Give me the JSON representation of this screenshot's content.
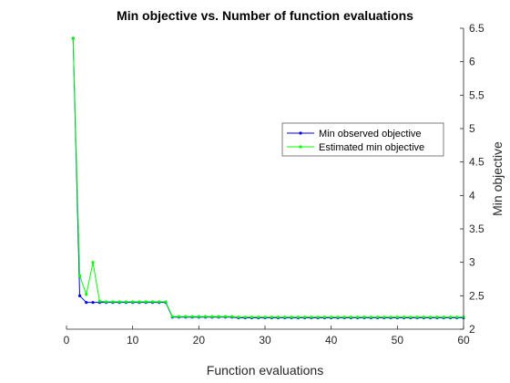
{
  "chart_data": {
    "type": "line",
    "title": "Min objective vs. Number of function evaluations",
    "xlabel": "Function evaluations",
    "ylabel": "Min objective",
    "xlim": [
      0,
      60
    ],
    "ylim": [
      2,
      6.5
    ],
    "xticks": [
      "0",
      "10",
      "20",
      "30",
      "40",
      "50",
      "60"
    ],
    "yticks": [
      "2",
      "2.5",
      "3",
      "3.5",
      "4",
      "4.5",
      "5",
      "5.5",
      "6",
      "6.5"
    ],
    "y_axis_location": "right",
    "grid": false,
    "legend_position": "right-center",
    "x": [
      1,
      2,
      3,
      4,
      5,
      6,
      7,
      8,
      9,
      10,
      11,
      12,
      13,
      14,
      15,
      16,
      17,
      18,
      19,
      20,
      21,
      22,
      23,
      24,
      25,
      26,
      27,
      28,
      29,
      30,
      31,
      32,
      33,
      34,
      35,
      36,
      37,
      38,
      39,
      40,
      41,
      42,
      43,
      44,
      45,
      46,
      47,
      48,
      49,
      50,
      51,
      52,
      53,
      54,
      55,
      56,
      57,
      58,
      59,
      60
    ],
    "series": [
      {
        "name": "Min observed objective",
        "color": "#0000ff",
        "values": [
          6.35,
          2.5,
          2.4,
          2.4,
          2.4,
          2.4,
          2.4,
          2.4,
          2.4,
          2.4,
          2.4,
          2.4,
          2.4,
          2.4,
          2.4,
          2.18,
          2.18,
          2.18,
          2.18,
          2.18,
          2.18,
          2.18,
          2.18,
          2.18,
          2.18,
          2.17,
          2.17,
          2.17,
          2.17,
          2.17,
          2.17,
          2.17,
          2.17,
          2.17,
          2.17,
          2.17,
          2.17,
          2.17,
          2.17,
          2.17,
          2.17,
          2.17,
          2.17,
          2.17,
          2.17,
          2.17,
          2.17,
          2.17,
          2.17,
          2.17,
          2.17,
          2.17,
          2.17,
          2.17,
          2.17,
          2.17,
          2.17,
          2.17,
          2.17,
          2.17
        ]
      },
      {
        "name": "Estimated min objective",
        "color": "#00ff00",
        "values": [
          6.35,
          2.8,
          2.52,
          3.0,
          2.42,
          2.41,
          2.41,
          2.41,
          2.41,
          2.41,
          2.41,
          2.41,
          2.41,
          2.41,
          2.41,
          2.19,
          2.19,
          2.19,
          2.19,
          2.19,
          2.19,
          2.19,
          2.19,
          2.19,
          2.19,
          2.18,
          2.18,
          2.18,
          2.18,
          2.18,
          2.18,
          2.18,
          2.18,
          2.18,
          2.18,
          2.18,
          2.18,
          2.18,
          2.18,
          2.18,
          2.18,
          2.18,
          2.18,
          2.18,
          2.18,
          2.18,
          2.18,
          2.18,
          2.18,
          2.18,
          2.18,
          2.18,
          2.18,
          2.18,
          2.18,
          2.18,
          2.18,
          2.18,
          2.18,
          2.18
        ]
      }
    ]
  }
}
